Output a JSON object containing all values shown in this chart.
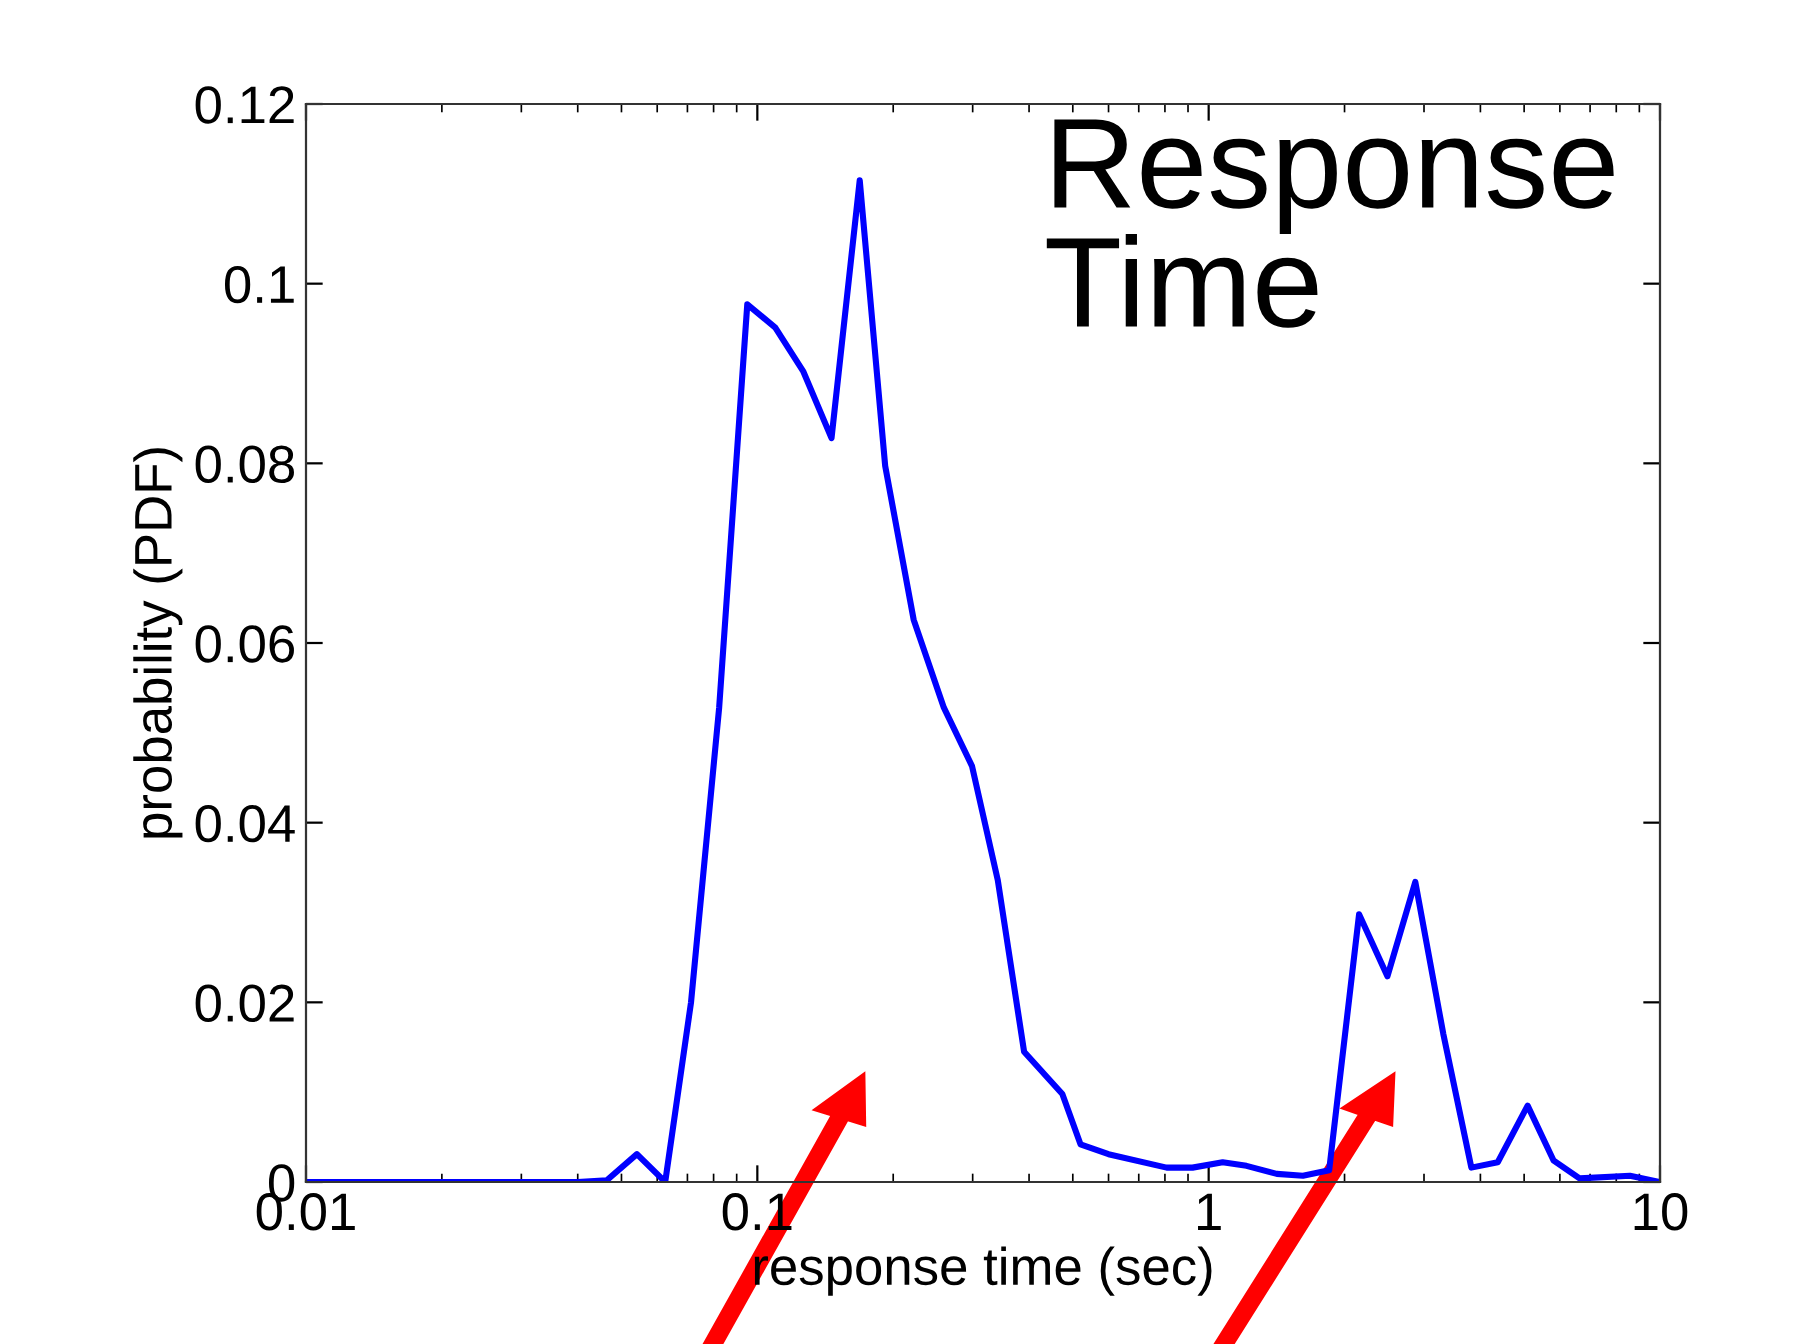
{
  "chart_data": {
    "type": "line",
    "title": "Response\nTime",
    "xlabel": "response time (sec)",
    "ylabel": "probability (PDF)",
    "log": "x",
    "xlim": [
      0.01,
      10
    ],
    "xticks": [
      0.01,
      0.1,
      1,
      10
    ],
    "ylim": [
      0,
      0.12
    ],
    "yticks": [
      0,
      0.02,
      0.04,
      0.06,
      0.08,
      0.1,
      0.12
    ],
    "grid": false,
    "legend": false,
    "marker": "none",
    "line_style": "solid",
    "series": [
      {
        "color": "#0000ff",
        "x": [
          0.01,
          0.04,
          0.0464,
          0.0541,
          0.0625,
          0.0713,
          0.0823,
          0.095,
          0.1096,
          0.1265,
          0.146,
          0.1686,
          0.192,
          0.222,
          0.259,
          0.299,
          0.341,
          0.39,
          0.474,
          0.52,
          0.6,
          0.807,
          0.921,
          1.074,
          1.213,
          1.416,
          1.618,
          1.849,
          2.154,
          2.489,
          2.87,
          3.31,
          3.82,
          4.37,
          5.09,
          5.81,
          6.64,
          8.58,
          10
        ],
        "values": [
          0,
          0,
          0.0002,
          0.0031,
          0,
          0.02,
          0.0528,
          0.0977,
          0.0951,
          0.0902,
          0.0828,
          0.1115,
          0.0797,
          0.0626,
          0.0528,
          0.0463,
          0.0336,
          0.0145,
          0.0098,
          0.0042,
          0.0031,
          0.0016,
          0.0016,
          0.0022,
          0.0018,
          0.0009,
          0.0007,
          0.0013,
          0.0298,
          0.0229,
          0.0334,
          0.0165,
          0.0016,
          0.0022,
          0.0085,
          0.0024,
          0.0004,
          0.0007,
          0
        ]
      }
    ]
  }
}
